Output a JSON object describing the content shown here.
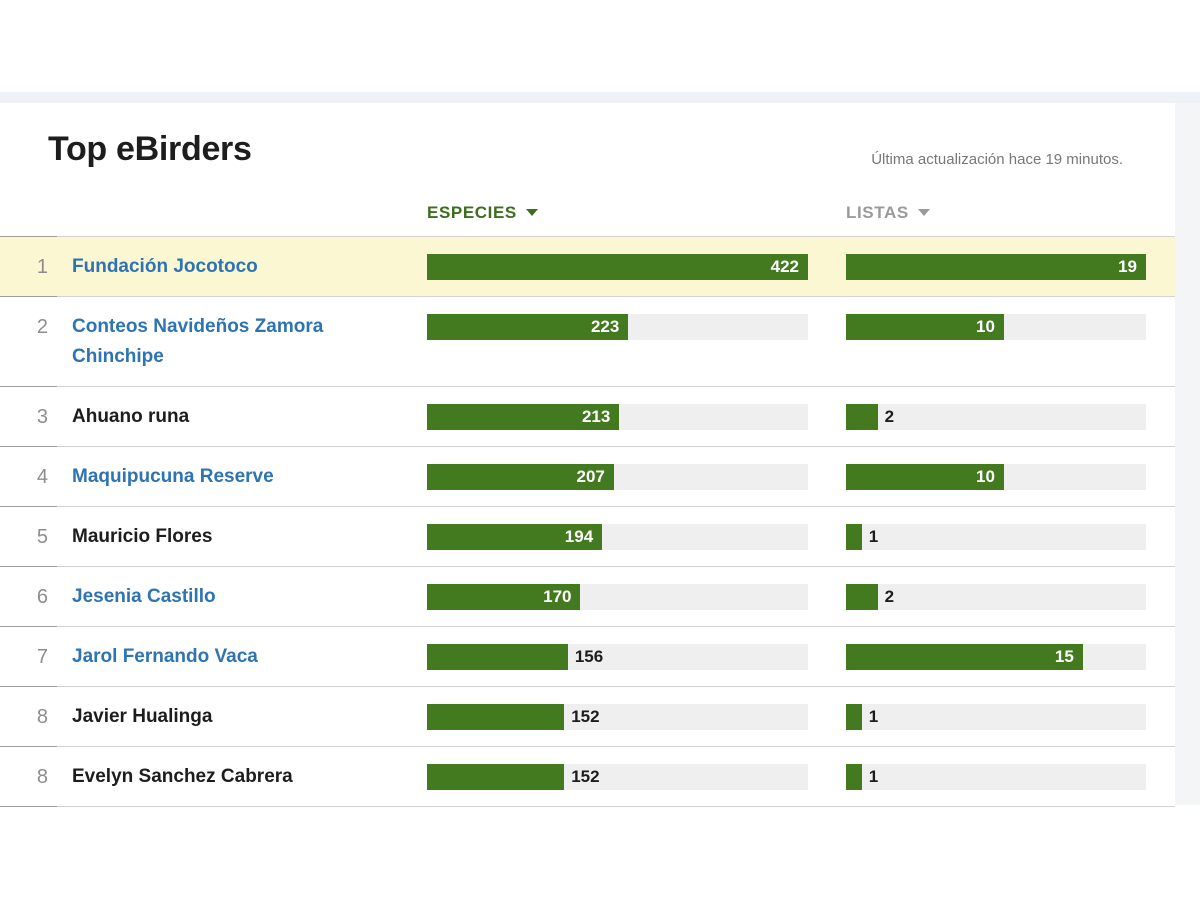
{
  "header": {
    "title": "Top eBirders",
    "last_updated": "Última actualización hace 19 minutos."
  },
  "table": {
    "columns": [
      {
        "id": "especies",
        "label": "ESPECIES",
        "max": 422,
        "sort_active": true
      },
      {
        "id": "listas",
        "label": "LISTAS",
        "max": 19,
        "sort_active": false
      }
    ],
    "rows": [
      {
        "rank": "1",
        "name": "Fundación Jocotoco",
        "is_link": true,
        "highlighted": true,
        "especies": 422,
        "listas": 19
      },
      {
        "rank": "2",
        "name": "Conteos Navideños Zamora Chinchipe",
        "is_link": true,
        "highlighted": false,
        "especies": 223,
        "listas": 10
      },
      {
        "rank": "3",
        "name": "Ahuano runa",
        "is_link": false,
        "highlighted": false,
        "especies": 213,
        "listas": 2
      },
      {
        "rank": "4",
        "name": "Maquipucuna Reserve",
        "is_link": true,
        "highlighted": false,
        "especies": 207,
        "listas": 10
      },
      {
        "rank": "5",
        "name": "Mauricio Flores",
        "is_link": false,
        "highlighted": false,
        "especies": 194,
        "listas": 1
      },
      {
        "rank": "6",
        "name": "Jesenia Castillo",
        "is_link": true,
        "highlighted": false,
        "especies": 170,
        "listas": 2
      },
      {
        "rank": "7",
        "name": "Jarol Fernando Vaca",
        "is_link": true,
        "highlighted": false,
        "especies": 156,
        "listas": 15
      },
      {
        "rank": "8",
        "name": "Javier Hualinga",
        "is_link": false,
        "highlighted": false,
        "especies": 152,
        "listas": 1
      },
      {
        "rank": "8",
        "name": "Evelyn Sanchez Cabrera",
        "is_link": false,
        "highlighted": false,
        "especies": 152,
        "listas": 1
      }
    ]
  },
  "colors": {
    "bar_green": "#437a1f",
    "header_green": "#3c6e1d",
    "header_gray": "#9a9a9a",
    "link_blue": "#2e73b2",
    "highlight_yellow": "#fbf7d3",
    "track_gray": "#efefef",
    "rank_gray": "#8d8d8d",
    "muted_text": "#75787b",
    "divider_light": "#d2d2d2",
    "divider_dark": "#9e9e9e",
    "top_band": "#eef2f6",
    "gutter": "#f4f5f6"
  },
  "chart_data": {
    "type": "bar",
    "title": "Top eBirders",
    "categories": [
      "Fundación Jocotoco",
      "Conteos Navideños Zamora Chinchipe",
      "Ahuano runa",
      "Maquipucuna Reserve",
      "Mauricio Flores",
      "Jesenia Castillo",
      "Jarol Fernando Vaca",
      "Javier Hualinga",
      "Evelyn Sanchez Cabrera"
    ],
    "series": [
      {
        "name": "ESPECIES",
        "values": [
          422,
          223,
          213,
          207,
          194,
          170,
          156,
          152,
          152
        ],
        "xlim": [
          0,
          422
        ]
      },
      {
        "name": "LISTAS",
        "values": [
          19,
          10,
          2,
          10,
          1,
          2,
          15,
          1,
          1
        ],
        "xlim": [
          0,
          19
        ]
      }
    ],
    "orientation": "horizontal",
    "value_labels": true,
    "legend_position": "column-headers"
  }
}
